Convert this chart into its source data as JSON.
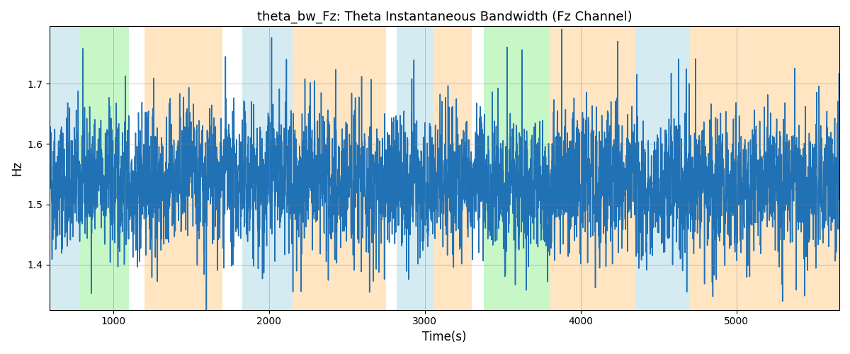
{
  "title": "theta_bw_Fz: Theta Instantaneous Bandwidth (Fz Channel)",
  "xlabel": "Time(s)",
  "ylabel": "Hz",
  "xlim": [
    595,
    5660
  ],
  "ylim": [
    1.325,
    1.795
  ],
  "yticks": [
    1.4,
    1.5,
    1.6,
    1.7
  ],
  "xticks": [
    1000,
    2000,
    3000,
    4000,
    5000
  ],
  "line_color": "#2171b5",
  "line_width": 1.1,
  "seed": 42,
  "n_points": 5000,
  "x_start": 595,
  "x_end": 5660,
  "base_value": 1.535,
  "noise_scale": 0.055,
  "background_bands": [
    {
      "xmin": 595,
      "xmax": 790,
      "color": "#add8e6",
      "alpha": 0.5
    },
    {
      "xmin": 790,
      "xmax": 1100,
      "color": "#90ee90",
      "alpha": 0.5
    },
    {
      "xmin": 1200,
      "xmax": 1700,
      "color": "#ffd59a",
      "alpha": 0.6
    },
    {
      "xmin": 1830,
      "xmax": 2150,
      "color": "#add8e6",
      "alpha": 0.5
    },
    {
      "xmin": 2150,
      "xmax": 2750,
      "color": "#ffd59a",
      "alpha": 0.6
    },
    {
      "xmin": 2820,
      "xmax": 3050,
      "color": "#add8e6",
      "alpha": 0.5
    },
    {
      "xmin": 3050,
      "xmax": 3300,
      "color": "#ffd59a",
      "alpha": 0.6
    },
    {
      "xmin": 3380,
      "xmax": 3800,
      "color": "#90ee90",
      "alpha": 0.5
    },
    {
      "xmin": 3800,
      "xmax": 4350,
      "color": "#ffd59a",
      "alpha": 0.6
    },
    {
      "xmin": 4350,
      "xmax": 4700,
      "color": "#add8e6",
      "alpha": 0.5
    },
    {
      "xmin": 4700,
      "xmax": 5660,
      "color": "#ffd59a",
      "alpha": 0.6
    }
  ],
  "figsize": [
    12.0,
    5.0
  ],
  "dpi": 100
}
